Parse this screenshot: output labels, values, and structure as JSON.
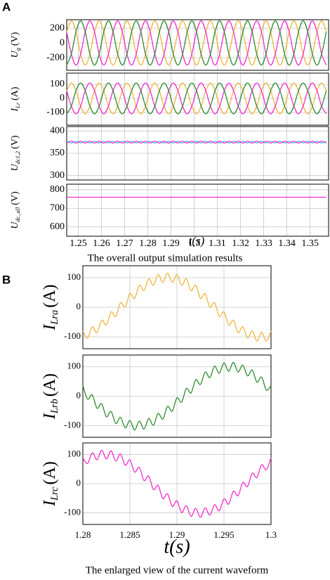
{
  "panels": [
    {
      "label": "A",
      "caption": "The overall output simulation results"
    },
    {
      "label": "B",
      "caption": "The enlarged view of the current waveform"
    }
  ],
  "chart_data": [
    {
      "type": "line",
      "ylabel": [
        "U",
        "g",
        "(V)"
      ],
      "xlim": [
        1.245,
        1.358
      ],
      "xticks": [
        1.25,
        1.26,
        1.27,
        1.28,
        1.29,
        1.3,
        1.31,
        1.32,
        1.33,
        1.34,
        1.35
      ],
      "ylim": [
        -370,
        315
      ],
      "yticks": [
        -200,
        0,
        200
      ],
      "grid": true,
      "x": [
        1.245,
        1.247,
        1.249,
        1.251,
        1.253,
        1.255,
        1.257,
        1.259,
        1.261,
        1.263,
        1.265,
        1.267,
        1.269,
        1.271,
        1.273,
        1.275,
        1.277,
        1.279,
        1.281,
        1.283,
        1.285,
        1.287,
        1.289,
        1.291,
        1.293,
        1.295,
        1.297,
        1.299,
        1.301,
        1.303,
        1.305,
        1.307,
        1.309,
        1.311,
        1.313,
        1.315,
        1.317,
        1.319,
        1.321,
        1.323,
        1.325,
        1.327,
        1.329,
        1.331,
        1.333,
        1.335,
        1.337,
        1.339,
        1.341,
        1.343,
        1.345,
        1.347,
        1.349,
        1.351,
        1.353,
        1.355,
        1.357
      ],
      "series": [
        {
          "color": "#efb43c",
          "values": [
            150,
            300,
            150,
            -150,
            -300,
            -150,
            150,
            300,
            150,
            -150,
            -300,
            -150,
            150,
            300,
            150,
            -150,
            -300,
            -150,
            150,
            300,
            150,
            -150,
            -300,
            -150,
            150,
            300,
            150,
            -150,
            -300,
            -150,
            150,
            300,
            150,
            -150,
            -300,
            -150,
            150,
            300,
            150,
            -150,
            -300,
            -150,
            150,
            300,
            150,
            -150,
            -300,
            -150,
            150,
            300,
            150,
            -150,
            -300,
            -150,
            150,
            300,
            150
          ]
        },
        {
          "color": "#f22ccf",
          "values": [
            150,
            -150,
            -300,
            -150,
            150,
            300,
            150,
            -150,
            -300,
            -150,
            150,
            300,
            150,
            -150,
            -300,
            -150,
            150,
            300,
            150,
            -150,
            -300,
            -150,
            150,
            300,
            150,
            -150,
            -300,
            -150,
            150,
            300,
            150,
            -150,
            -300,
            -150,
            150,
            300,
            150,
            -150,
            -300,
            -150,
            150,
            300,
            150,
            -150,
            -300,
            -150,
            150,
            300,
            150,
            -150,
            -300,
            -150,
            150,
            300,
            150,
            -150,
            -300
          ]
        },
        {
          "color": "#2e8b2e",
          "values": [
            -300,
            -150,
            150,
            300,
            150,
            -150,
            -300,
            -150,
            150,
            300,
            150,
            -150,
            -300,
            -150,
            150,
            300,
            150,
            -150,
            -300,
            -150,
            150,
            300,
            150,
            -150,
            -300,
            -150,
            150,
            300,
            150,
            -150,
            -300,
            -150,
            150,
            300,
            150,
            -150,
            -300,
            -150,
            150,
            300,
            150,
            -150,
            -300,
            -150,
            150,
            300,
            150,
            -150,
            -300,
            -150,
            150,
            300,
            150,
            -150,
            -300,
            -150,
            150
          ]
        }
      ]
    },
    {
      "type": "line",
      "ylabel": [
        "I",
        "Lr",
        "(A)"
      ],
      "xlim": [
        1.245,
        1.358
      ],
      "xticks": [
        1.25,
        1.26,
        1.27,
        1.28,
        1.29,
        1.3,
        1.31,
        1.32,
        1.33,
        1.34,
        1.35
      ],
      "ylim": [
        -190,
        180
      ],
      "yticks": [
        -100,
        0,
        100
      ],
      "grid": true,
      "x": [
        1.245,
        1.247,
        1.249,
        1.251,
        1.253,
        1.255,
        1.257,
        1.259,
        1.261,
        1.263,
        1.265,
        1.267,
        1.269,
        1.271,
        1.273,
        1.275,
        1.277,
        1.279,
        1.281,
        1.283,
        1.285,
        1.287,
        1.289,
        1.291,
        1.293,
        1.295,
        1.297,
        1.299,
        1.301,
        1.303,
        1.305,
        1.307,
        1.309,
        1.311,
        1.313,
        1.315,
        1.317,
        1.319,
        1.321,
        1.323,
        1.325,
        1.327,
        1.329,
        1.331,
        1.333,
        1.335,
        1.337,
        1.339,
        1.341,
        1.343,
        1.345,
        1.347,
        1.349,
        1.351,
        1.353,
        1.355,
        1.357
      ],
      "series": [
        {
          "color": "#efb43c",
          "values": [
            55,
            110,
            55,
            -55,
            -110,
            -55,
            55,
            110,
            55,
            -55,
            -110,
            -55,
            55,
            110,
            55,
            -55,
            -110,
            -55,
            55,
            110,
            55,
            -55,
            -110,
            -55,
            55,
            110,
            55,
            -55,
            -110,
            -55,
            55,
            110,
            55,
            -55,
            -110,
            -55,
            55,
            110,
            55,
            -55,
            -110,
            -55,
            55,
            110,
            55,
            -55,
            -110,
            -55,
            55,
            110,
            55,
            -55,
            -110,
            -55,
            55,
            110,
            55
          ]
        },
        {
          "color": "#f22ccf",
          "values": [
            55,
            -55,
            -110,
            -55,
            55,
            110,
            55,
            -55,
            -110,
            -55,
            55,
            110,
            55,
            -55,
            -110,
            -55,
            55,
            110,
            55,
            -55,
            -110,
            -55,
            55,
            110,
            55,
            -55,
            -110,
            -55,
            55,
            110,
            55,
            -55,
            -110,
            -55,
            55,
            110,
            55,
            -55,
            -110,
            -55,
            55,
            110,
            55,
            -55,
            -110,
            -55,
            55,
            110,
            55,
            -55,
            -110,
            -55,
            55,
            110,
            55,
            -55,
            -110
          ]
        },
        {
          "color": "#2e8b2e",
          "values": [
            -110,
            -55,
            55,
            110,
            55,
            -55,
            -110,
            -55,
            55,
            110,
            55,
            -55,
            -110,
            -55,
            55,
            110,
            55,
            -55,
            -110,
            -55,
            55,
            110,
            55,
            -55,
            -110,
            -55,
            55,
            110,
            55,
            -55,
            -110,
            -55,
            55,
            110,
            55,
            -55,
            -110,
            -55,
            55,
            110,
            55,
            -55,
            -110,
            -55,
            55,
            110,
            55,
            -55,
            -110,
            -55,
            55,
            110,
            55,
            -55,
            -110,
            -55,
            55
          ]
        }
      ]
    },
    {
      "type": "line",
      "ylabel": [
        "U",
        "dc1,2",
        "(V)"
      ],
      "xlim": [
        1.245,
        1.358
      ],
      "xticks": [
        1.25,
        1.26,
        1.27,
        1.28,
        1.29,
        1.3,
        1.31,
        1.32,
        1.33,
        1.34,
        1.35
      ],
      "ylim": [
        290,
        410
      ],
      "yticks": [
        300,
        350,
        400
      ],
      "grid": true,
      "x": [
        1.245,
        1.247,
        1.249,
        1.251,
        1.253,
        1.255,
        1.257,
        1.259,
        1.261,
        1.263,
        1.265,
        1.267,
        1.269,
        1.271,
        1.273,
        1.275,
        1.277,
        1.279,
        1.281,
        1.283,
        1.285,
        1.287,
        1.289,
        1.291,
        1.293,
        1.295,
        1.297,
        1.299,
        1.301,
        1.303,
        1.305,
        1.307,
        1.309,
        1.311,
        1.313,
        1.315,
        1.317,
        1.319,
        1.321,
        1.323,
        1.325,
        1.327,
        1.329,
        1.331,
        1.333,
        1.335,
        1.337,
        1.339,
        1.341,
        1.343,
        1.345,
        1.347,
        1.349,
        1.351,
        1.353,
        1.355,
        1.357
      ],
      "series": [
        {
          "color": "#36c6e8",
          "values": [
            377,
            373,
            377,
            373,
            377,
            373,
            377,
            373,
            377,
            373,
            377,
            373,
            377,
            373,
            377,
            373,
            377,
            373,
            377,
            373,
            377,
            373,
            377,
            373,
            377,
            373,
            377,
            373,
            377,
            373,
            377,
            373,
            377,
            373,
            377,
            373,
            377,
            373,
            377,
            373,
            377,
            373,
            377,
            373,
            377,
            373,
            377,
            373,
            377,
            373,
            377,
            373,
            377,
            373,
            377,
            373,
            377
          ]
        },
        {
          "color": "#f22ccf",
          "values": [
            373,
            377,
            373,
            377,
            373,
            377,
            373,
            377,
            373,
            377,
            373,
            377,
            373,
            377,
            373,
            377,
            373,
            377,
            373,
            377,
            373,
            377,
            373,
            377,
            373,
            377,
            373,
            377,
            373,
            377,
            373,
            377,
            373,
            377,
            373,
            377,
            373,
            377,
            373,
            377,
            373,
            377,
            373,
            377,
            373,
            377,
            373,
            377,
            373,
            377,
            373,
            377,
            373,
            377,
            373,
            377,
            373
          ]
        }
      ]
    },
    {
      "type": "line",
      "ylabel": [
        "U",
        "dc_all",
        "(V)"
      ],
      "xlim": [
        1.245,
        1.358
      ],
      "xticks": [
        1.25,
        1.26,
        1.27,
        1.28,
        1.29,
        1.3,
        1.31,
        1.32,
        1.33,
        1.34,
        1.35
      ],
      "ylim": [
        550,
        830
      ],
      "yticks": [
        600,
        700,
        800
      ],
      "grid": true,
      "xlabel": "t(s)",
      "x": [
        1.245,
        1.357
      ],
      "series": [
        {
          "color": "#f22ccf",
          "values": [
            760,
            760
          ]
        }
      ]
    },
    {
      "type": "line",
      "ylabel": [
        "I",
        "Lra",
        "(A)"
      ],
      "xlim": [
        1.28,
        1.3
      ],
      "xticks": [
        1.28,
        1.285,
        1.29,
        1.295,
        1.3
      ],
      "ylim": [
        -140,
        140
      ],
      "yticks": [
        -100,
        0,
        100
      ],
      "grid": true,
      "x": [
        1.28,
        1.2805,
        1.281,
        1.2815,
        1.282,
        1.2825,
        1.283,
        1.2835,
        1.284,
        1.2845,
        1.285,
        1.2855,
        1.286,
        1.2865,
        1.287,
        1.2875,
        1.288,
        1.2885,
        1.289,
        1.2895,
        1.29,
        1.2905,
        1.291,
        1.2915,
        1.292,
        1.2925,
        1.293,
        1.2935,
        1.294,
        1.2945,
        1.295,
        1.2955,
        1.296,
        1.2965,
        1.297,
        1.2975,
        1.298,
        1.2985,
        1.299,
        1.2995,
        1.3
      ],
      "series": [
        {
          "color": "#efb43c",
          "values": [
            -80,
            -104,
            -66,
            -86,
            -44,
            -60,
            -16,
            -31,
            15,
            1,
            46,
            30,
            74,
            56,
            96,
            74,
            110,
            84,
            115,
            84,
            110,
            74,
            96,
            56,
            74,
            30,
            46,
            1,
            15,
            -31,
            -16,
            -60,
            -44,
            -86,
            -66,
            -104,
            -80,
            -114,
            -85,
            -114,
            -80
          ]
        }
      ]
    },
    {
      "type": "line",
      "ylabel": [
        "I",
        "Lrb",
        "(A)"
      ],
      "xlim": [
        1.28,
        1.3
      ],
      "xticks": [
        1.28,
        1.285,
        1.29,
        1.295,
        1.3
      ],
      "ylim": [
        -140,
        140
      ],
      "yticks": [
        -100,
        0,
        100
      ],
      "grid": true,
      "x": [
        1.28,
        1.2805,
        1.281,
        1.2815,
        1.282,
        1.2825,
        1.283,
        1.2835,
        1.284,
        1.2845,
        1.285,
        1.2855,
        1.286,
        1.2865,
        1.287,
        1.2875,
        1.288,
        1.2885,
        1.289,
        1.2895,
        1.29,
        1.2905,
        1.291,
        1.2915,
        1.292,
        1.2925,
        1.293,
        1.2935,
        1.294,
        1.2945,
        1.295,
        1.2955,
        1.296,
        1.2965,
        1.297,
        1.2975,
        1.298,
        1.2985,
        1.299,
        1.2995,
        1.3
      ],
      "series": [
        {
          "color": "#2e8b2e",
          "values": [
            36,
            -10,
            4,
            -41,
            -26,
            -70,
            -52,
            -93,
            -72,
            -108,
            -83,
            -115,
            -85,
            -112,
            -76,
            -99,
            -59,
            -78,
            -35,
            -51,
            -6,
            -20,
            26,
            11,
            56,
            40,
            82,
            63,
            102,
            78,
            113,
            85,
            115,
            82,
            106,
            69,
            89,
            48,
            65,
            21,
            36
          ]
        }
      ]
    },
    {
      "type": "line",
      "ylabel": [
        "I",
        "Lrc",
        "(A)"
      ],
      "xlim": [
        1.28,
        1.3
      ],
      "xticks": [
        1.28,
        1.285,
        1.29,
        1.295,
        1.3
      ],
      "ylim": [
        -140,
        140
      ],
      "yticks": [
        -100,
        0,
        100
      ],
      "grid": true,
      "xlabel": "t(s)",
      "x": [
        1.28,
        1.2805,
        1.281,
        1.2815,
        1.282,
        1.2825,
        1.283,
        1.2835,
        1.284,
        1.2845,
        1.285,
        1.2855,
        1.286,
        1.2865,
        1.287,
        1.2875,
        1.288,
        1.2885,
        1.289,
        1.2895,
        1.29,
        1.2905,
        1.291,
        1.2915,
        1.292,
        1.2925,
        1.293,
        1.2935,
        1.294,
        1.2945,
        1.295,
        1.2955,
        1.296,
        1.2965,
        1.297,
        1.2975,
        1.298,
        1.2985,
        1.299,
        1.2995,
        1.3
      ],
      "series": [
        {
          "color": "#f22ccf",
          "values": [
            89,
            69,
            106,
            82,
            115,
            85,
            113,
            78,
            102,
            63,
            82,
            40,
            56,
            11,
            26,
            -20,
            -6,
            -51,
            -35,
            -78,
            -59,
            -99,
            -76,
            -112,
            -85,
            -115,
            -83,
            -108,
            -72,
            -93,
            -52,
            -70,
            -26,
            -41,
            4,
            -10,
            36,
            21,
            65,
            48,
            89
          ]
        }
      ]
    }
  ]
}
